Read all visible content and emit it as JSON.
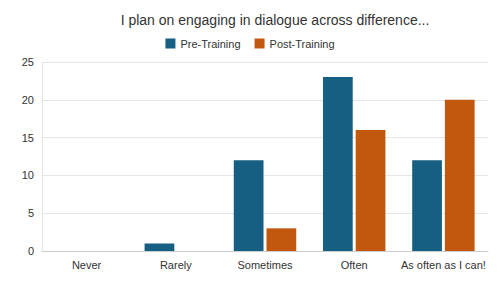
{
  "chart_data": {
    "type": "bar",
    "title": "I plan on engaging in dialogue across difference...",
    "categories": [
      "Never",
      "Rarely",
      "Sometimes",
      "Often",
      "As often as I can!"
    ],
    "series": [
      {
        "name": "Pre-Training",
        "color": "#175e83",
        "values": [
          0,
          1,
          12,
          23,
          12
        ]
      },
      {
        "name": "Post-Training",
        "color": "#c2580e",
        "values": [
          0,
          0,
          3,
          16,
          20
        ]
      }
    ],
    "ylim": [
      0,
      25
    ],
    "yticks": [
      0,
      5,
      10,
      15,
      20,
      25
    ],
    "grid": true,
    "legend": "top"
  }
}
